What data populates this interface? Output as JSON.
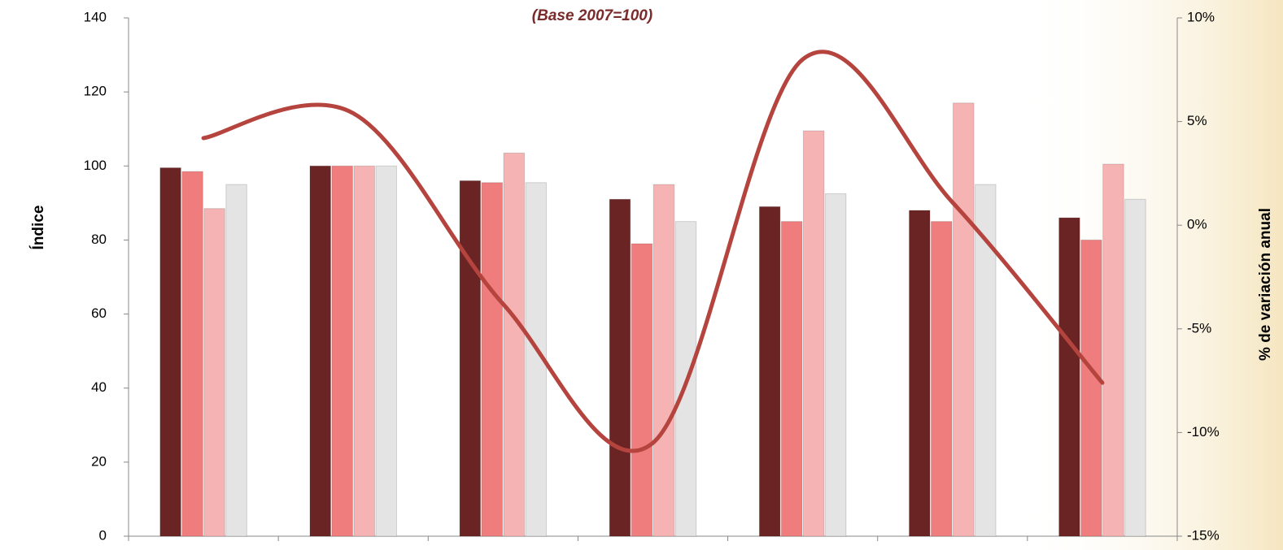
{
  "chart_data": {
    "type": "bar",
    "subtitle": "(Base 2007=100)",
    "y_label": "Índice",
    "y2_label": "% de variación anual",
    "categories": [
      null,
      null,
      null,
      null,
      null,
      null,
      null
    ],
    "series": [
      {
        "color": "#6b2424",
        "values": [
          99.5,
          100,
          96,
          91,
          89,
          88,
          86
        ]
      },
      {
        "color": "#ef7d7d",
        "values": [
          98.5,
          100,
          95.5,
          79,
          85,
          85,
          80
        ]
      },
      {
        "color": "#f6b3b3",
        "values": [
          88.5,
          100,
          103.5,
          95,
          109.5,
          117,
          100.5
        ]
      },
      {
        "color": "#e4e4e4",
        "values": [
          95,
          100,
          95.5,
          85,
          92.5,
          95,
          91
        ]
      },
      {
        "type": "line",
        "axis": "y2",
        "color": "#b5443e",
        "values": [
          4.2,
          5.4,
          -3.8,
          -10.5,
          8.0,
          1.1,
          -7.6
        ]
      }
    ],
    "ylim": [
      0,
      140
    ],
    "yticks": [
      0,
      20,
      40,
      60,
      80,
      100,
      120,
      140
    ],
    "y2lim": [
      -15,
      10
    ],
    "y2ticks": [
      {
        "value": -15,
        "label": "-15%"
      },
      {
        "value": -10,
        "label": "-10%"
      },
      {
        "value": -5,
        "label": "-5%"
      },
      {
        "value": 0,
        "label": "0%"
      },
      {
        "value": 5,
        "label": "5%"
      },
      {
        "value": 10,
        "label": "10%"
      }
    ]
  }
}
